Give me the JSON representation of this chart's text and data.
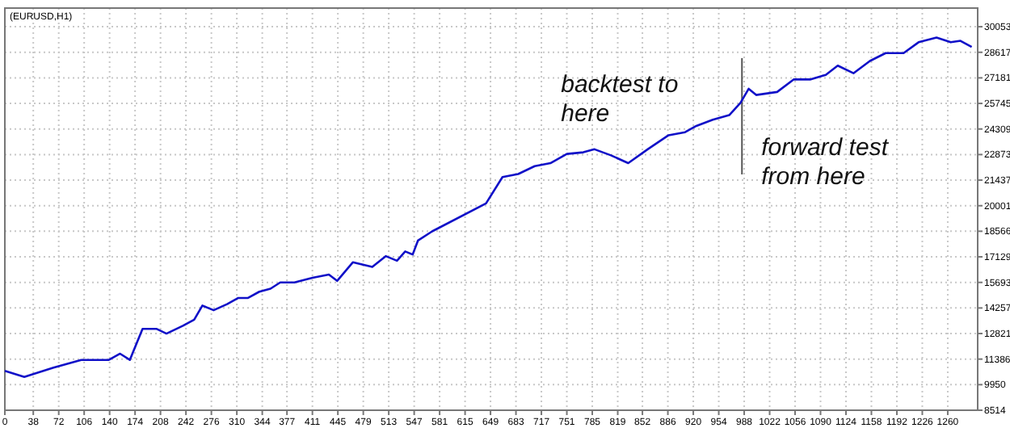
{
  "chart_data": {
    "type": "line",
    "title": "(EURUSD,H1)",
    "x": [
      0,
      26,
      65,
      102,
      139,
      154,
      167,
      184,
      203,
      216,
      238,
      253,
      264,
      279,
      297,
      312,
      325,
      340,
      355,
      368,
      387,
      411,
      433,
      444,
      465,
      491,
      509,
      524,
      535,
      545,
      552,
      571,
      643,
      665,
      686,
      708,
      729,
      751,
      773,
      788,
      810,
      833,
      859,
      887,
      909,
      924,
      946,
      968,
      983,
      994,
      1004,
      1032,
      1054,
      1076,
      1097,
      1113,
      1134,
      1156,
      1177,
      1201,
      1221,
      1245,
      1264,
      1277,
      1292
    ],
    "series": [
      {
        "color": "#1010c8",
        "values": [
          10730,
          10390,
          10910,
          11340,
          11340,
          11690,
          11340,
          13080,
          13080,
          12820,
          13260,
          13600,
          14390,
          14130,
          14470,
          14820,
          14820,
          15170,
          15340,
          15690,
          15690,
          15950,
          16130,
          15780,
          16820,
          16560,
          17170,
          16910,
          17430,
          17260,
          18040,
          18560,
          20130,
          21610,
          21780,
          22220,
          22390,
          22910,
          23000,
          23170,
          22830,
          22390,
          23170,
          23960,
          24130,
          24480,
          24830,
          25090,
          25780,
          26570,
          26220,
          26390,
          27090,
          27090,
          27350,
          27870,
          27440,
          28130,
          28570,
          28570,
          29180,
          29440,
          29180,
          29260,
          28920
        ]
      }
    ],
    "xlim": [
      0,
      1300
    ],
    "xticks": [
      0,
      38,
      72,
      106,
      140,
      174,
      208,
      242,
      276,
      310,
      344,
      377,
      411,
      445,
      479,
      513,
      547,
      581,
      615,
      649,
      683,
      717,
      751,
      785,
      819,
      852,
      886,
      920,
      954,
      988,
      1022,
      1056,
      1090,
      1124,
      1158,
      1192,
      1226,
      1260
    ],
    "ylim": [
      8514,
      31100
    ],
    "yticks": [
      8514,
      9950,
      11386,
      12821,
      14257,
      15693,
      17129,
      18566,
      20001,
      21437,
      22873,
      24309,
      25745,
      27181,
      28617,
      30053
    ],
    "grid": true,
    "ref_lines": [
      {
        "axis": "x",
        "value": 985,
        "color": "#555555"
      }
    ],
    "annotations": [
      "backtest to here",
      "forward test from here"
    ]
  }
}
